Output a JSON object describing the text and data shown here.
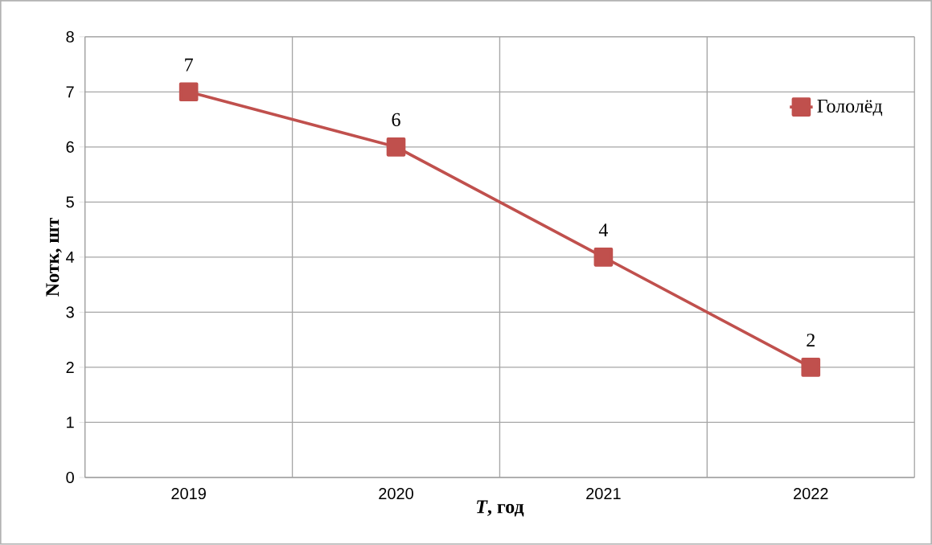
{
  "chart_data": {
    "type": "line",
    "xlabel": "*T*, год",
    "ylabel": "Nотк, шт",
    "categories": [
      "2019",
      "2020",
      "2021",
      "2022"
    ],
    "series": [
      {
        "name": "Гололёд",
        "color": "#c0504d",
        "values": [
          7,
          6,
          4,
          2
        ]
      }
    ],
    "ylim": [
      0,
      8
    ],
    "yticks": [
      0,
      1,
      2,
      3,
      4,
      5,
      6,
      7,
      8
    ],
    "grid": true,
    "legend": "top right",
    "marker": "square",
    "line_style": "solid",
    "data_labels": true
  }
}
